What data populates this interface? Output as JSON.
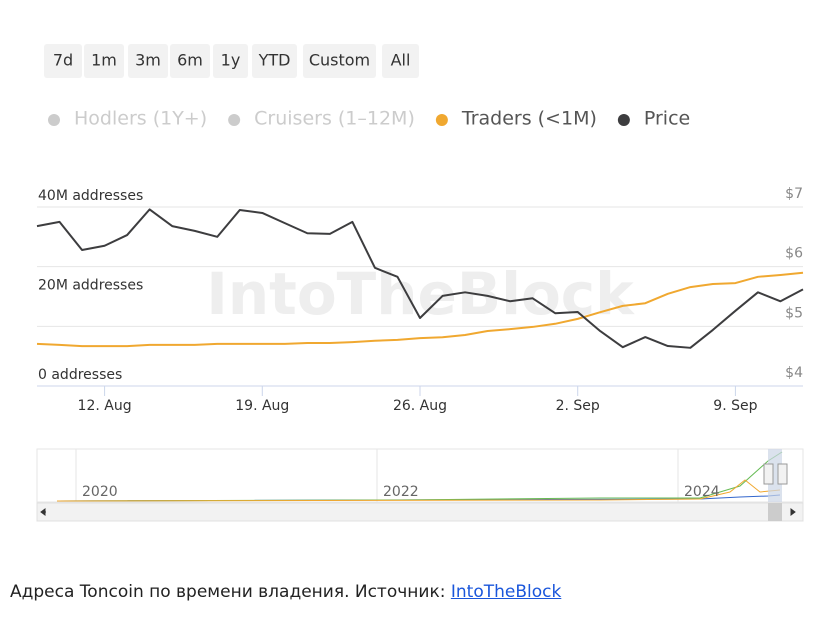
{
  "range_buttons": [
    "7d",
    "1m",
    "3m",
    "6m",
    "1y",
    "YTD",
    "Custom",
    "All"
  ],
  "watermark": "IntoTheBlock",
  "chart_data": {
    "type": "line",
    "categories": [
      null,
      null,
      null,
      "12. Aug",
      null,
      null,
      null,
      null,
      null,
      null,
      "19. Aug",
      null,
      null,
      null,
      null,
      null,
      null,
      "26. Aug",
      null,
      null,
      null,
      null,
      null,
      null,
      "2. Sep",
      null,
      null,
      null,
      null,
      null,
      null,
      "9. Sep",
      null,
      null,
      null
    ],
    "legend": [
      {
        "name": "Hodlers (1Y+)",
        "color": "#cccccc",
        "visible": false
      },
      {
        "name": "Cruisers (1–12M)",
        "color": "#cccccc",
        "visible": false
      }
    ],
    "series": [
      {
        "name": "Traders (<1M)",
        "color": "#f0a830",
        "axis": "y",
        "values": [
          9400000,
          9200000,
          8900000,
          8900000,
          8900000,
          9200000,
          9200000,
          9200000,
          9400000,
          9400000,
          9400000,
          9400000,
          9600000,
          9600000,
          9800000,
          10100000,
          10300000,
          10700000,
          10900000,
          11400000,
          12300000,
          12700000,
          13200000,
          13900000,
          15000000,
          16500000,
          17900000,
          18500000,
          20600000,
          22100000,
          22800000,
          23000000,
          24400000,
          24800000,
          25300000
        ]
      },
      {
        "name": "Price",
        "color": "#3d3d3f",
        "axis": "y2",
        "values": [
          6.68,
          6.75,
          6.28,
          6.35,
          6.53,
          6.96,
          6.68,
          6.6,
          6.5,
          6.95,
          6.9,
          6.73,
          6.56,
          6.55,
          6.75,
          5.98,
          5.83,
          5.14,
          5.51,
          5.57,
          5.51,
          5.42,
          5.47,
          5.22,
          5.24,
          4.92,
          4.65,
          4.82,
          4.67,
          4.64,
          4.94,
          5.26,
          5.57,
          5.42,
          5.62
        ]
      }
    ],
    "ylim": [
      0,
      40000000
    ],
    "yticks": [
      {
        "value": 0,
        "label": "0 addresses"
      },
      {
        "value": 20000000,
        "label": "20M addresses"
      },
      {
        "value": 40000000,
        "label": "40M addresses"
      }
    ],
    "y2lim": [
      4,
      7
    ],
    "y2ticks": [
      {
        "value": 4,
        "label": "$4"
      },
      {
        "value": 5,
        "label": "$5"
      },
      {
        "value": 6,
        "label": "$6"
      },
      {
        "value": 7,
        "label": "$7"
      }
    ],
    "grid": true,
    "navigator_labels": [
      "2020",
      "2022",
      "2024"
    ]
  },
  "caption": {
    "text": "Адреса Toncoin по времени владения. Источник: ",
    "link": "IntoTheBlock"
  }
}
